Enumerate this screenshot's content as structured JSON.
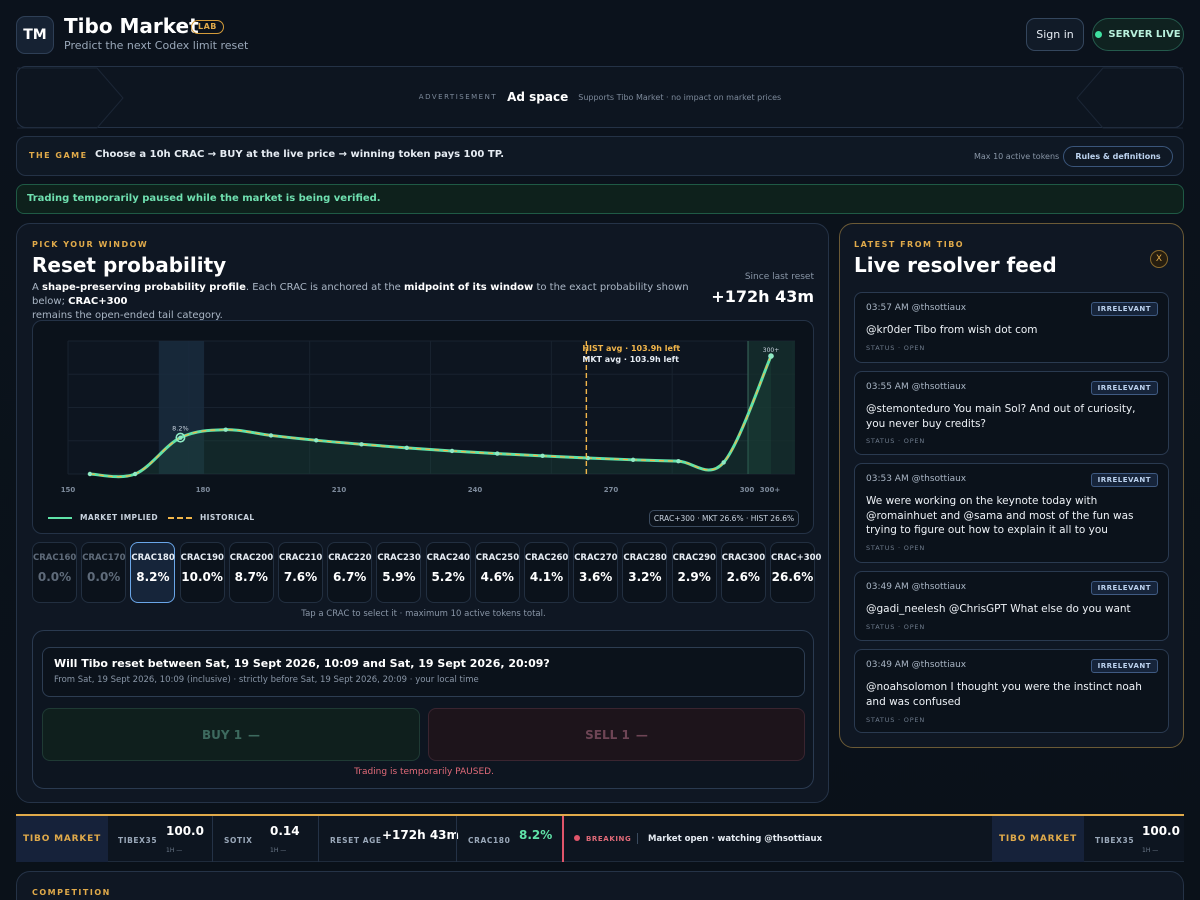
{
  "header": {
    "logo_text": "TM",
    "title": "Tibo Market",
    "badge": "LAB",
    "subtitle": "Predict the next Codex limit reset",
    "sign_in": "Sign in",
    "server_status": "SERVER LIVE"
  },
  "ad": {
    "label": "ADVERTISEMENT",
    "title": "Ad space",
    "note": "Supports Tibo Market · no impact on market prices"
  },
  "game": {
    "tag": "THE GAME",
    "text": "Choose a 10h CRAC → BUY at the live price → winning token pays 100 TP.",
    "max_tokens": "Max 10 active tokens",
    "rules_button": "Rules & definitions"
  },
  "pause_banner": "Trading temporarily paused while the market is being verified.",
  "panel": {
    "kicker": "PICK YOUR WINDOW",
    "title": "Reset probability",
    "desc_1": "A ",
    "desc_b1": "shape-preserving probability profile",
    "desc_2": ". Each CRAC is anchored at the ",
    "desc_b2": "midpoint of its window",
    "desc_3": " to the exact probability shown below; ",
    "desc_b3": "CRAC+300",
    "desc_4": "remains the open-ended tail category.",
    "since_label": "Since last reset",
    "since_value": "+172h 43m",
    "legend_market": "MARKET IMPLIED",
    "legend_hist": "HISTORICAL",
    "summary_pill": "CRAC+300 · MKT 26.6% · HIST 26.6%",
    "tap_note": "Tap a CRAC to select it · maximum 10 active tokens total."
  },
  "chart_data": {
    "type": "line",
    "x_ticks": [
      "150",
      "180",
      "210",
      "240",
      "270",
      "300",
      "300+"
    ],
    "xlim": [
      150,
      300
    ],
    "series": [
      {
        "name": "MARKET IMPLIED",
        "color": "#5fe3a8",
        "x": [
          165,
          175,
          185,
          195,
          205,
          215,
          225,
          235,
          245,
          255,
          265,
          275,
          285,
          295,
          305
        ],
        "values": [
          0.0,
          0.0,
          8.2,
          10.0,
          8.7,
          7.6,
          6.7,
          5.9,
          5.2,
          4.6,
          4.1,
          3.6,
          3.2,
          2.9,
          2.6
        ]
      },
      {
        "name": "HISTORICAL",
        "color": "#f2b64a",
        "x": [
          165,
          175,
          185,
          195,
          205,
          215,
          225,
          235,
          245,
          255,
          265,
          275,
          285,
          295,
          305
        ],
        "values": [
          0.0,
          0.0,
          8.2,
          10.0,
          8.7,
          7.6,
          6.7,
          5.9,
          5.2,
          4.6,
          4.1,
          3.6,
          3.2,
          2.9,
          2.6
        ]
      }
    ],
    "tail": {
      "label": "300+",
      "value": 26.6
    },
    "highlight_label": "8.2%",
    "hist_avg_label": "HIST avg · 103.9h left",
    "mkt_avg_label": "MKT avg · 103.9h left",
    "avg_x": 276,
    "selected_window": [
      180,
      190
    ]
  },
  "tiles": [
    {
      "name": "CRAC160",
      "pct": "0.0%",
      "state": "dim"
    },
    {
      "name": "CRAC170",
      "pct": "0.0%",
      "state": "dim"
    },
    {
      "name": "CRAC180",
      "pct": "8.2%",
      "state": "sel"
    },
    {
      "name": "CRAC190",
      "pct": "10.0%",
      "state": ""
    },
    {
      "name": "CRAC200",
      "pct": "8.7%",
      "state": ""
    },
    {
      "name": "CRAC210",
      "pct": "7.6%",
      "state": ""
    },
    {
      "name": "CRAC220",
      "pct": "6.7%",
      "state": ""
    },
    {
      "name": "CRAC230",
      "pct": "5.9%",
      "state": ""
    },
    {
      "name": "CRAC240",
      "pct": "5.2%",
      "state": ""
    },
    {
      "name": "CRAC250",
      "pct": "4.6%",
      "state": ""
    },
    {
      "name": "CRAC260",
      "pct": "4.1%",
      "state": ""
    },
    {
      "name": "CRAC270",
      "pct": "3.6%",
      "state": ""
    },
    {
      "name": "CRAC280",
      "pct": "3.2%",
      "state": ""
    },
    {
      "name": "CRAC290",
      "pct": "2.9%",
      "state": ""
    },
    {
      "name": "CRAC300",
      "pct": "2.6%",
      "state": ""
    },
    {
      "name": "CRAC+300",
      "pct": "26.6%",
      "state": ""
    }
  ],
  "trade": {
    "question": "Will Tibo reset between Sat, 19 Sept 2026, 10:09 and Sat, 19 Sept 2026, 20:09?",
    "sub": "From Sat, 19 Sept 2026, 10:09 (inclusive) · strictly before Sat, 19 Sept 2026, 20:09 · your local time",
    "buy_label": "BUY 1",
    "buy_price": "—",
    "sell_label": "SELL 1",
    "sell_price": "—",
    "paused": "Trading is temporarily PAUSED."
  },
  "feed": {
    "kicker": "LATEST FROM TIBO",
    "title": "Live resolver feed",
    "close": "X",
    "items": [
      {
        "meta": "03:57 AM @thsottiaux",
        "badge": "IRRELEVANT",
        "body": "@kr0der Tibo from wish dot com",
        "status": "STATUS · OPEN"
      },
      {
        "meta": "03:55 AM @thsottiaux",
        "badge": "IRRELEVANT",
        "body": "@stemonteduro You main Sol? And out of curiosity, you never buy credits?",
        "status": "STATUS · OPEN"
      },
      {
        "meta": "03:53 AM @thsottiaux",
        "badge": "IRRELEVANT",
        "body": "We were working on the keynote today with @romainhuet and @sama and most of the fun was trying to figure out how to explain it all to you because…",
        "status": "STATUS · OPEN"
      },
      {
        "meta": "03:49 AM @thsottiaux",
        "badge": "IRRELEVANT",
        "body": "@gadi_neelesh @ChrisGPT What else do you want",
        "status": "STATUS · OPEN"
      },
      {
        "meta": "03:49 AM @thsottiaux",
        "badge": "IRRELEVANT",
        "body": "@noahsolomon I thought you were the instinct noah and was confused",
        "status": "STATUS · OPEN"
      }
    ]
  },
  "ticker": {
    "brand": "TIBO MARKET",
    "tibex_label": "TIBEX35",
    "tibex_value": "100.0",
    "tibex_sub": "1H —",
    "sotix_label": "SOTIX",
    "sotix_value": "0.14",
    "sotix_sub": "1H —",
    "reset_label": "RESET AGE",
    "reset_value": "+172h 43m",
    "crac_label": "CRAC180",
    "crac_value": "8.2%",
    "breaking_label": "BREAKING",
    "breaking_text": "Market open · watching @thsottiaux",
    "brand2": "TIBO MARKET",
    "tibex2_label": "TIBEX35",
    "tibex2_value": "100.0",
    "tibex2_sub": "1H —"
  },
  "competition": {
    "kicker": "COMPETITION"
  },
  "colors": {
    "accent": "#e0aa4a",
    "market": "#5fe3a8",
    "historical": "#f2b64a",
    "live": "#3fe0a0"
  }
}
